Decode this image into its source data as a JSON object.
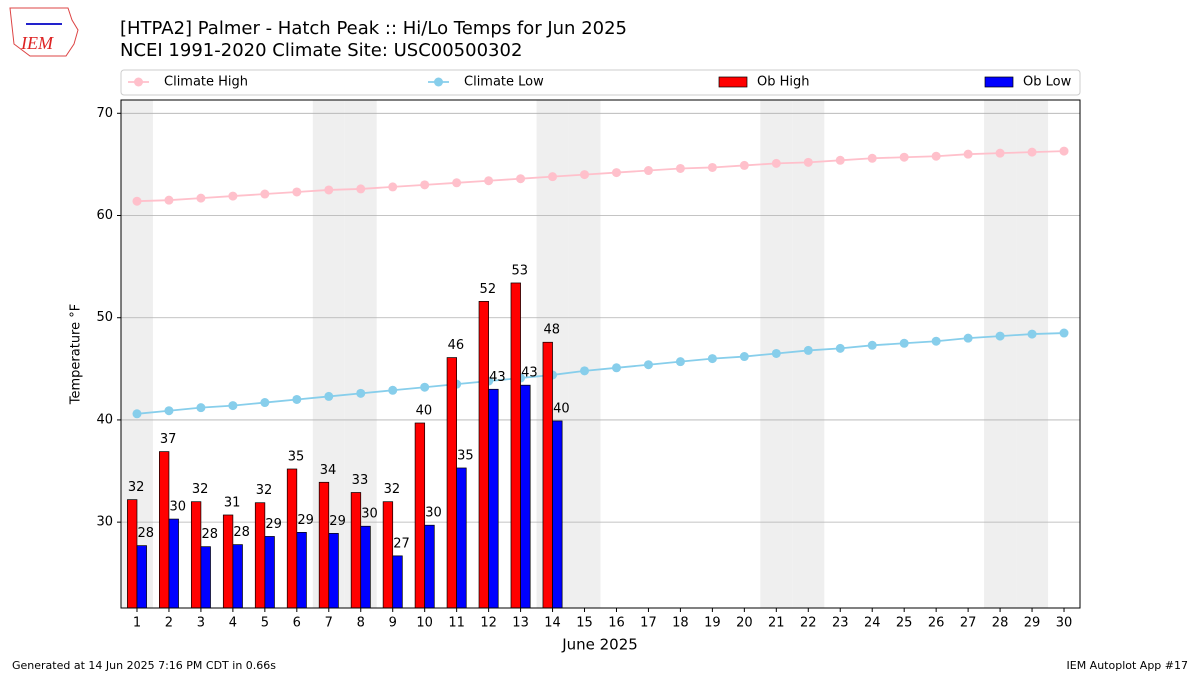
{
  "chart_data": {
    "type": "bar",
    "title": "[HTPA2] Palmer - Hatch Peak :: Hi/Lo Temps for Jun 2025",
    "subtitle": "NCEI 1991-2020 Climate Site: USC00500302",
    "logo_text": "IEM",
    "xlabel": "June 2025",
    "ylabel": "Temperature °F",
    "footer_left": "Generated at 14 Jun 2025 7:16 PM CDT in 0.66s",
    "footer_right": "IEM Autoplot App #17",
    "x": [
      1,
      2,
      3,
      4,
      5,
      6,
      7,
      8,
      9,
      10,
      11,
      12,
      13,
      14,
      15,
      16,
      17,
      18,
      19,
      20,
      21,
      22,
      23,
      24,
      25,
      26,
      27,
      28,
      29,
      30
    ],
    "xlim": [
      0.5,
      30.5
    ],
    "xticks": [
      1,
      2,
      3,
      4,
      5,
      6,
      7,
      8,
      9,
      10,
      11,
      12,
      13,
      14,
      15,
      16,
      17,
      18,
      19,
      20,
      21,
      22,
      23,
      24,
      25,
      26,
      27,
      28,
      29,
      30
    ],
    "ylim": [
      21.6,
      71.3
    ],
    "yticks": [
      30,
      40,
      50,
      60,
      70
    ],
    "grid": true,
    "shaded_days": [
      1,
      7,
      8,
      14,
      15,
      21,
      22,
      28,
      29
    ],
    "series": [
      {
        "name": "Climate High",
        "type": "line",
        "color": "#ffc0cb",
        "values": [
          61.4,
          61.5,
          61.7,
          61.9,
          62.1,
          62.3,
          62.5,
          62.6,
          62.8,
          63.0,
          63.2,
          63.4,
          63.6,
          63.8,
          64.0,
          64.2,
          64.4,
          64.6,
          64.7,
          64.9,
          65.1,
          65.2,
          65.4,
          65.6,
          65.7,
          65.8,
          66.0,
          66.1,
          66.2,
          66.3
        ]
      },
      {
        "name": "Climate Low",
        "type": "line",
        "color": "#87ceeb",
        "values": [
          40.6,
          40.9,
          41.2,
          41.4,
          41.7,
          42.0,
          42.3,
          42.6,
          42.9,
          43.2,
          43.5,
          43.8,
          44.1,
          44.4,
          44.8,
          45.1,
          45.4,
          45.7,
          46.0,
          46.2,
          46.5,
          46.8,
          47.0,
          47.3,
          47.5,
          47.7,
          48.0,
          48.2,
          48.4,
          48.5
        ]
      },
      {
        "name": "Ob High",
        "type": "bar",
        "color": "#ff0000",
        "values": [
          32.2,
          36.9,
          32.0,
          30.7,
          31.9,
          35.2,
          33.9,
          32.9,
          32.0,
          39.7,
          46.1,
          51.6,
          53.4,
          47.6,
          null,
          null,
          null,
          null,
          null,
          null,
          null,
          null,
          null,
          null,
          null,
          null,
          null,
          null,
          null,
          null
        ],
        "value_labels": [
          "32",
          "37",
          "32",
          "31",
          "32",
          "35",
          "34",
          "33",
          "32",
          "40",
          "46",
          "52",
          "53",
          "48",
          null,
          null,
          null,
          null,
          null,
          null,
          null,
          null,
          null,
          null,
          null,
          null,
          null,
          null,
          null,
          null
        ]
      },
      {
        "name": "Ob Low",
        "type": "bar",
        "color": "#0000ff",
        "values": [
          27.7,
          30.3,
          27.6,
          27.8,
          28.6,
          29.0,
          28.9,
          29.6,
          26.7,
          29.7,
          35.3,
          43.0,
          43.4,
          39.9,
          null,
          null,
          null,
          null,
          null,
          null,
          null,
          null,
          null,
          null,
          null,
          null,
          null,
          null,
          null,
          null
        ],
        "value_labels": [
          "28",
          "30",
          "28",
          "28",
          "29",
          "29",
          "29",
          "30",
          "27",
          "30",
          "35",
          "43",
          "43",
          "40",
          null,
          null,
          null,
          null,
          null,
          null,
          null,
          null,
          null,
          null,
          null,
          null,
          null,
          null,
          null,
          null
        ]
      }
    ]
  }
}
